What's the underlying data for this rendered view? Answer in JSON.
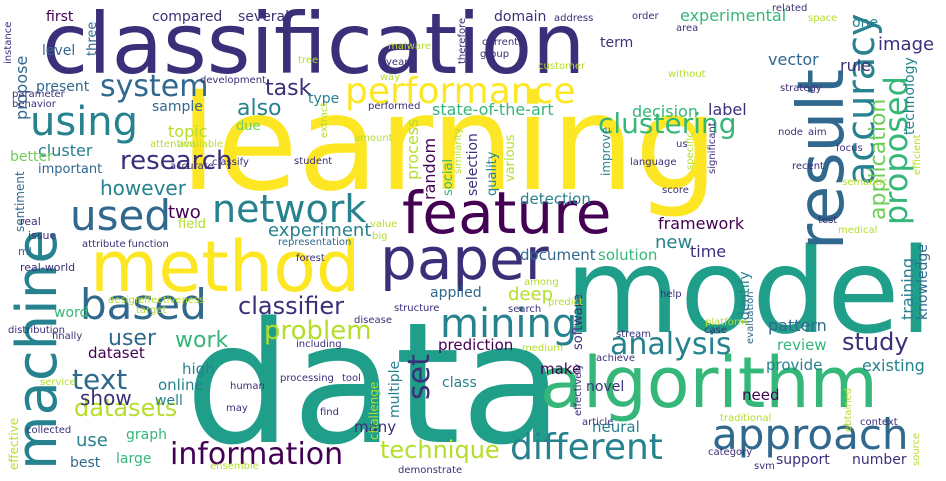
{
  "palette": {
    "dark_purple": "#440154",
    "indigo": "#3b2f7a",
    "blue": "#31688e",
    "teal": "#26828e",
    "sea": "#1f9e89",
    "green": "#35b779",
    "lime": "#6ece58",
    "yellow": "#fde725",
    "chartreuse": "#b5de2b"
  },
  "words": [
    {
      "text": "learning"
    },
    {
      "text": "data"
    },
    {
      "text": "model"
    },
    {
      "text": "classification"
    },
    {
      "text": "method"
    },
    {
      "text": "machine"
    },
    {
      "text": "feature"
    },
    {
      "text": "algorithm"
    },
    {
      "text": "result"
    },
    {
      "text": "paper"
    },
    {
      "text": "approach"
    },
    {
      "text": "performance"
    },
    {
      "text": "accuracy"
    },
    {
      "text": "proposed"
    },
    {
      "text": "network"
    },
    {
      "text": "mining"
    },
    {
      "text": "based"
    },
    {
      "text": "using"
    },
    {
      "text": "used"
    },
    {
      "text": "system"
    },
    {
      "text": "clustering"
    },
    {
      "text": "analysis"
    },
    {
      "text": "different"
    },
    {
      "text": "information"
    },
    {
      "text": "research"
    },
    {
      "text": "text"
    },
    {
      "text": "datasets"
    },
    {
      "text": "classifier"
    },
    {
      "text": "problem"
    },
    {
      "text": "application"
    },
    {
      "text": "technique"
    },
    {
      "text": "study"
    },
    {
      "text": "however"
    },
    {
      "text": "task"
    },
    {
      "text": "also"
    },
    {
      "text": "user"
    },
    {
      "text": "work"
    },
    {
      "text": "set"
    },
    {
      "text": "show"
    },
    {
      "text": "technology"
    },
    {
      "text": "training"
    },
    {
      "text": "knowledge"
    },
    {
      "text": "image"
    },
    {
      "text": "experiment"
    },
    {
      "text": "two"
    },
    {
      "text": "process"
    },
    {
      "text": "random"
    },
    {
      "text": "deep"
    },
    {
      "text": "framework"
    },
    {
      "text": "new"
    },
    {
      "text": "state-of-the-art"
    },
    {
      "text": "experimental"
    },
    {
      "text": "vector"
    },
    {
      "text": "rule"
    },
    {
      "text": "decision"
    },
    {
      "text": "label"
    },
    {
      "text": "topic"
    },
    {
      "text": "cluster"
    },
    {
      "text": "detection"
    },
    {
      "text": "document"
    },
    {
      "text": "solution"
    },
    {
      "text": "time"
    },
    {
      "text": "identify"
    },
    {
      "text": "pattern"
    },
    {
      "text": "review"
    },
    {
      "text": "existing"
    },
    {
      "text": "prediction"
    },
    {
      "text": "dataset"
    },
    {
      "text": "high"
    },
    {
      "text": "online"
    },
    {
      "text": "well"
    },
    {
      "text": "use"
    },
    {
      "text": "graph"
    },
    {
      "text": "large"
    },
    {
      "text": "best"
    },
    {
      "text": "many"
    },
    {
      "text": "neural"
    },
    {
      "text": "support"
    },
    {
      "text": "number"
    },
    {
      "text": "make"
    },
    {
      "text": "need"
    },
    {
      "text": "provide"
    },
    {
      "text": "novel"
    },
    {
      "text": "class"
    },
    {
      "text": "multiple"
    },
    {
      "text": "software"
    },
    {
      "text": "applied"
    },
    {
      "text": "word"
    },
    {
      "text": "first"
    },
    {
      "text": "three"
    },
    {
      "text": "present"
    },
    {
      "text": "level"
    },
    {
      "text": "propose"
    },
    {
      "text": "compared"
    },
    {
      "text": "several"
    },
    {
      "text": "domain"
    },
    {
      "text": "term"
    },
    {
      "text": "one"
    },
    {
      "text": "type"
    },
    {
      "text": "sample"
    },
    {
      "text": "due"
    },
    {
      "text": "important"
    },
    {
      "text": "better"
    },
    {
      "text": "sentiment"
    },
    {
      "text": "field"
    },
    {
      "text": "selection"
    },
    {
      "text": "quality"
    },
    {
      "text": "social"
    },
    {
      "text": "various"
    },
    {
      "text": "improve"
    },
    {
      "text": "effective"
    },
    {
      "text": "challenge"
    },
    {
      "text": "ml"
    },
    {
      "text": "real-world"
    },
    {
      "text": "issue"
    },
    {
      "text": "real"
    },
    {
      "text": "attribute"
    },
    {
      "text": "function"
    },
    {
      "text": "representation"
    },
    {
      "text": "big"
    },
    {
      "text": "value"
    },
    {
      "text": "effectiveness"
    },
    {
      "text": "design"
    },
    {
      "text": "target"
    },
    {
      "text": "disease"
    },
    {
      "text": "structure"
    },
    {
      "text": "search"
    },
    {
      "text": "predict"
    },
    {
      "text": "platform"
    },
    {
      "text": "help"
    },
    {
      "text": "evaluation"
    },
    {
      "text": "node"
    },
    {
      "text": "aim"
    },
    {
      "text": "focus"
    },
    {
      "text": "medical"
    },
    {
      "text": "test"
    },
    {
      "text": "semantic"
    },
    {
      "text": "recent"
    },
    {
      "text": "efficient"
    },
    {
      "text": "space"
    },
    {
      "text": "strategy"
    },
    {
      "text": "without"
    },
    {
      "text": "area"
    },
    {
      "text": "related"
    },
    {
      "text": "order"
    },
    {
      "text": "customer"
    },
    {
      "text": "current"
    },
    {
      "text": "group"
    },
    {
      "text": "therefore"
    },
    {
      "text": "address"
    },
    {
      "text": "malware"
    },
    {
      "text": "year"
    },
    {
      "text": "tree"
    },
    {
      "text": "way"
    },
    {
      "text": "development"
    },
    {
      "text": "behavior"
    },
    {
      "text": "parameter"
    },
    {
      "text": "instance"
    },
    {
      "text": "performed"
    },
    {
      "text": "extract"
    },
    {
      "text": "amount"
    },
    {
      "text": "similarity"
    },
    {
      "text": "language"
    },
    {
      "text": "significant"
    },
    {
      "text": "specific"
    },
    {
      "text": "us"
    },
    {
      "text": "score"
    },
    {
      "text": "student"
    },
    {
      "text": "classify"
    },
    {
      "text": "accurate"
    },
    {
      "text": "attention"
    },
    {
      "text": "available"
    },
    {
      "text": "distribution"
    },
    {
      "text": "including"
    },
    {
      "text": "finally"
    },
    {
      "text": "service"
    },
    {
      "text": "may"
    },
    {
      "text": "human"
    },
    {
      "text": "processing"
    },
    {
      "text": "tool"
    },
    {
      "text": "achieve"
    },
    {
      "text": "effectively"
    },
    {
      "text": "medium"
    },
    {
      "text": "stream"
    },
    {
      "text": "article"
    },
    {
      "text": "case"
    },
    {
      "text": "obtained"
    },
    {
      "text": "context"
    },
    {
      "text": "traditional"
    },
    {
      "text": "category"
    },
    {
      "text": "svm"
    },
    {
      "text": "source"
    },
    {
      "text": "find"
    },
    {
      "text": "collected"
    },
    {
      "text": "ensemble"
    },
    {
      "text": "demonstrate"
    },
    {
      "text": "among"
    },
    {
      "text": "forest"
    }
  ]
}
